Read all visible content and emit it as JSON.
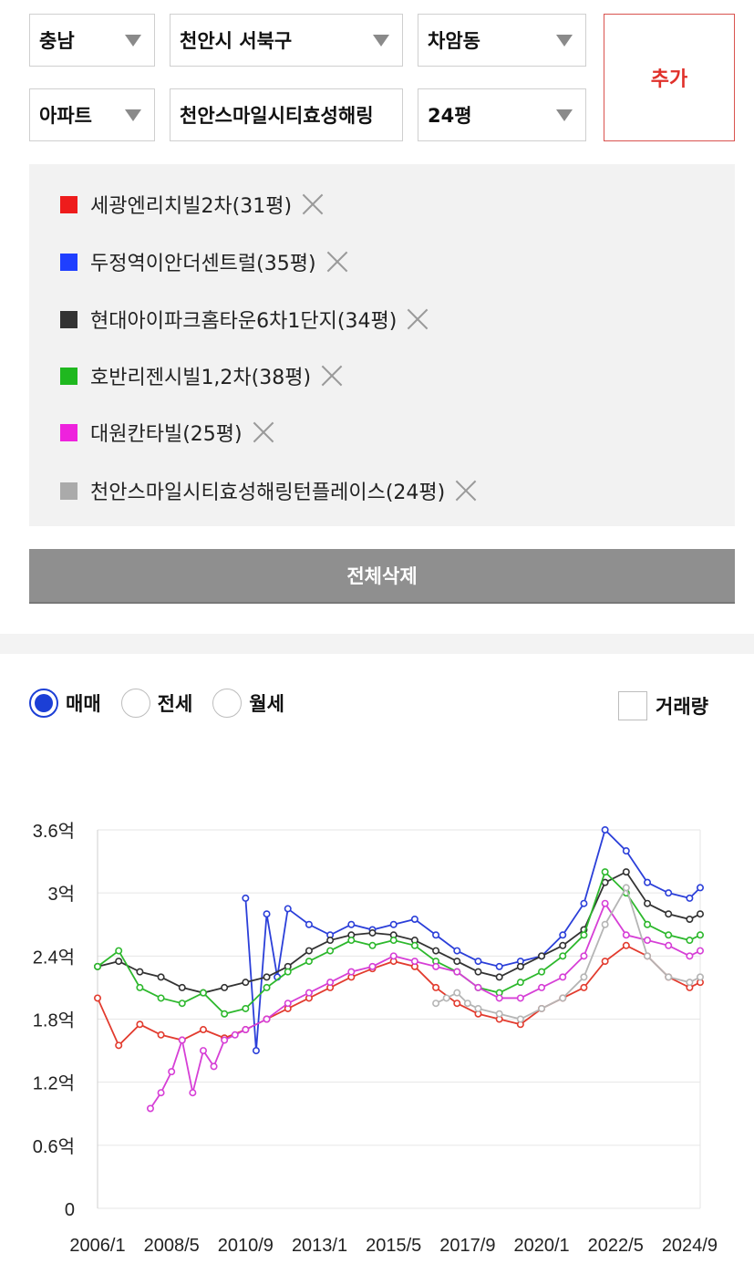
{
  "filters": {
    "province": "충남",
    "city": "천안시 서북구",
    "dong": "차암동",
    "type": "아파트",
    "complex": "천안스마일시티효성해링",
    "size": "24평",
    "add_label": "추가"
  },
  "compare_list": [
    {
      "label": "세광엔리치빌2차(31평)",
      "color": "#ee1c1c"
    },
    {
      "label": "두정역이안더센트럴(35평)",
      "color": "#1f3fff"
    },
    {
      "label": "현대아이파크홈타운6차1단지(34평)",
      "color": "#333333"
    },
    {
      "label": "호반리젠시빌1,2차(38평)",
      "color": "#1fb81f"
    },
    {
      "label": "대원칸타빌(25평)",
      "color": "#ee22dd"
    },
    {
      "label": "천안스마일시티효성해링턴플레이스(24평)",
      "color": "#aaaaaa"
    }
  ],
  "delete_all_label": "전체삭제",
  "deal_types": [
    {
      "label": "매매",
      "selected": true
    },
    {
      "label": "전세",
      "selected": false
    },
    {
      "label": "월세",
      "selected": false
    }
  ],
  "volume_label": "거래량",
  "chart_data": {
    "type": "line",
    "y_ticks": [
      "0",
      "0.6억",
      "1.2억",
      "1.8억",
      "2.4억",
      "3억",
      "3.6억"
    ],
    "y_tick_values": [
      0,
      0.6,
      1.2,
      1.8,
      2.4,
      3.0,
      3.6
    ],
    "x_ticks": [
      "2006/1",
      "2008/5",
      "2010/9",
      "2013/1",
      "2015/5",
      "2017/9",
      "2020/1",
      "2022/5",
      "2024/9"
    ],
    "ylim": [
      0,
      3.6
    ],
    "grid": true,
    "series": [
      {
        "name": "세광엔리치빌2차(31평)",
        "color": "#e23b2e",
        "x": [
          "2006/1",
          "2006/9",
          "2007/5",
          "2008/1",
          "2008/9",
          "2009/5",
          "2010/1",
          "2010/9",
          "2011/5",
          "2012/1",
          "2012/9",
          "2013/5",
          "2014/1",
          "2014/9",
          "2015/5",
          "2016/1",
          "2016/9",
          "2017/5",
          "2018/1",
          "2018/9",
          "2019/5",
          "2020/1",
          "2020/9",
          "2021/5",
          "2022/1",
          "2022/9",
          "2023/5",
          "2024/1",
          "2024/9",
          "2025/1"
        ],
        "y": [
          2.0,
          1.55,
          1.75,
          1.65,
          1.6,
          1.7,
          1.62,
          1.7,
          1.8,
          1.9,
          2.0,
          2.1,
          2.2,
          2.28,
          2.35,
          2.3,
          2.1,
          1.95,
          1.85,
          1.8,
          1.75,
          1.9,
          2.0,
          2.1,
          2.35,
          2.5,
          2.4,
          2.2,
          2.1,
          2.15
        ]
      },
      {
        "name": "두정역이안더센트럴(35평)",
        "color": "#2b3fd9",
        "x": [
          "2010/9",
          "2011/1",
          "2011/5",
          "2011/9",
          "2012/1",
          "2012/9",
          "2013/5",
          "2014/1",
          "2014/9",
          "2015/5",
          "2016/1",
          "2016/9",
          "2017/5",
          "2018/1",
          "2018/9",
          "2019/5",
          "2020/1",
          "2020/9",
          "2021/5",
          "2022/1",
          "2022/9",
          "2023/5",
          "2024/1",
          "2024/9",
          "2025/1"
        ],
        "y": [
          2.95,
          1.5,
          2.8,
          2.2,
          2.85,
          2.7,
          2.6,
          2.7,
          2.65,
          2.7,
          2.75,
          2.6,
          2.45,
          2.35,
          2.3,
          2.35,
          2.4,
          2.6,
          2.9,
          3.6,
          3.4,
          3.1,
          3.0,
          2.95,
          3.05
        ]
      },
      {
        "name": "현대아이파크홈타운6차1단지(34평)",
        "color": "#333333",
        "x": [
          "2006/1",
          "2006/9",
          "2007/5",
          "2008/1",
          "2008/9",
          "2009/5",
          "2010/1",
          "2010/9",
          "2011/5",
          "2012/1",
          "2012/9",
          "2013/5",
          "2014/1",
          "2014/9",
          "2015/5",
          "2016/1",
          "2016/9",
          "2017/5",
          "2018/1",
          "2018/9",
          "2019/5",
          "2020/1",
          "2020/9",
          "2021/5",
          "2022/1",
          "2022/9",
          "2023/5",
          "2024/1",
          "2024/9",
          "2025/1"
        ],
        "y": [
          2.3,
          2.35,
          2.25,
          2.2,
          2.1,
          2.05,
          2.1,
          2.15,
          2.2,
          2.3,
          2.45,
          2.55,
          2.6,
          2.62,
          2.6,
          2.55,
          2.45,
          2.35,
          2.25,
          2.2,
          2.3,
          2.4,
          2.5,
          2.65,
          3.1,
          3.2,
          2.9,
          2.8,
          2.75,
          2.8
        ]
      },
      {
        "name": "호반리젠시빌1,2차(38평)",
        "color": "#2db82d",
        "x": [
          "2006/1",
          "2006/9",
          "2007/5",
          "2008/1",
          "2008/9",
          "2009/5",
          "2010/1",
          "2010/9",
          "2011/5",
          "2012/1",
          "2012/9",
          "2013/5",
          "2014/1",
          "2014/9",
          "2015/5",
          "2016/1",
          "2016/9",
          "2017/5",
          "2018/1",
          "2018/9",
          "2019/5",
          "2020/1",
          "2020/9",
          "2021/5",
          "2022/1",
          "2022/9",
          "2023/5",
          "2024/1",
          "2024/9",
          "2025/1"
        ],
        "y": [
          2.3,
          2.45,
          2.1,
          2.0,
          1.95,
          2.05,
          1.85,
          1.9,
          2.1,
          2.25,
          2.35,
          2.45,
          2.55,
          2.5,
          2.55,
          2.5,
          2.35,
          2.25,
          2.1,
          2.05,
          2.15,
          2.25,
          2.4,
          2.6,
          3.2,
          3.0,
          2.7,
          2.6,
          2.55,
          2.6
        ]
      },
      {
        "name": "대원칸타빌(25평)",
        "color": "#d63fd6",
        "x": [
          "2007/9",
          "2008/1",
          "2008/5",
          "2008/9",
          "2009/1",
          "2009/5",
          "2009/9",
          "2010/1",
          "2010/5",
          "2010/9",
          "2011/5",
          "2012/1",
          "2012/9",
          "2013/5",
          "2014/1",
          "2014/9",
          "2015/5",
          "2016/1",
          "2016/9",
          "2017/5",
          "2018/1",
          "2018/9",
          "2019/5",
          "2020/1",
          "2020/9",
          "2021/5",
          "2022/1",
          "2022/9",
          "2023/5",
          "2024/1",
          "2024/9",
          "2025/1"
        ],
        "y": [
          0.95,
          1.1,
          1.3,
          1.6,
          1.1,
          1.5,
          1.35,
          1.6,
          1.65,
          1.7,
          1.8,
          1.95,
          2.05,
          2.15,
          2.25,
          2.3,
          2.4,
          2.35,
          2.3,
          2.25,
          2.1,
          2.0,
          2.0,
          2.1,
          2.2,
          2.4,
          2.9,
          2.6,
          2.55,
          2.5,
          2.4,
          2.45
        ]
      },
      {
        "name": "천안스마일시티효성해링턴플레이스(24평)",
        "color": "#b5b5b5",
        "x": [
          "2016/9",
          "2017/1",
          "2017/5",
          "2017/9",
          "2018/1",
          "2018/9",
          "2019/5",
          "2020/1",
          "2020/9",
          "2021/5",
          "2022/1",
          "2022/9",
          "2023/5",
          "2024/1",
          "2024/9",
          "2025/1"
        ],
        "y": [
          1.95,
          2.0,
          2.05,
          1.95,
          1.9,
          1.85,
          1.8,
          1.9,
          2.0,
          2.2,
          2.7,
          3.05,
          2.4,
          2.2,
          2.15,
          2.2
        ]
      }
    ]
  }
}
